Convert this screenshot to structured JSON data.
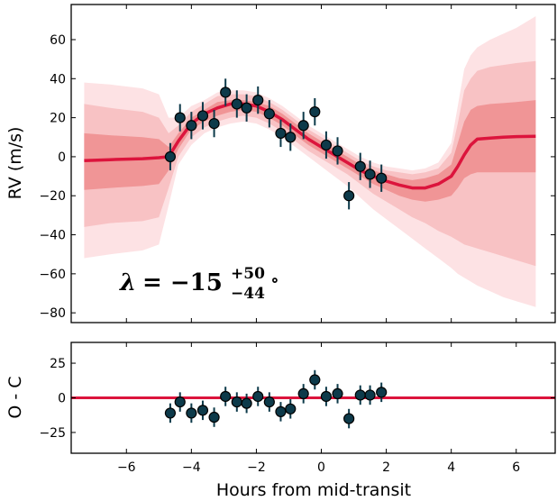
{
  "chart_data": [
    {
      "type": "scatter",
      "panel": "top",
      "xlabel": "Hours from mid-transit",
      "ylabel": "RV (m/s)",
      "xlim": [
        -7.7,
        7.2
      ],
      "ylim": [
        -85,
        78
      ],
      "xticks": [
        -6,
        -4,
        -2,
        0,
        2,
        4,
        6
      ],
      "xtick_labels": [
        "−6",
        "−4",
        "−2",
        "0",
        "2",
        "4",
        "6"
      ],
      "yticks": [
        -80,
        -60,
        -40,
        -20,
        0,
        20,
        40,
        60
      ],
      "ytick_labels": [
        "−80",
        "−60",
        "−40",
        "−20",
        "0",
        "20",
        "40",
        "60"
      ],
      "annotation": {
        "lambda_symbol": "λ",
        "value_text": "= −15",
        "sup": "+50",
        "sub": "−44",
        "degree": "∘"
      },
      "model": {
        "color": "#dc143c",
        "x": [
          -7.3,
          -6.5,
          -5.5,
          -5.0,
          -4.7,
          -4.4,
          -4.0,
          -3.6,
          -3.2,
          -2.8,
          -2.4,
          -2.0,
          -1.6,
          -1.2,
          -0.8,
          -0.4,
          0.0,
          0.4,
          0.8,
          1.2,
          1.6,
          2.0,
          2.4,
          2.8,
          3.2,
          3.6,
          4.0,
          4.2,
          4.4,
          4.6,
          4.8,
          5.2,
          5.6,
          6.0,
          6.6
        ],
        "y": [
          -2,
          -1.5,
          -1,
          -0.5,
          0,
          8,
          17,
          22,
          25,
          27,
          27,
          26,
          23,
          19,
          14,
          9,
          5,
          1,
          -3,
          -7,
          -10,
          -12.5,
          -14.5,
          -16,
          -16,
          -14,
          -10,
          -5,
          1,
          6,
          9,
          9.5,
          10,
          10.3,
          10.5
        ],
        "bands": [
          {
            "level": "3sigma",
            "color": "#fde2e4",
            "upper": [
              38,
              37,
              35,
              32,
              20,
              20,
              26,
              29,
              33,
              34,
              34,
              33,
              30,
              26,
              21,
              16,
              12,
              8,
              4,
              0,
              -3,
              -5,
              -6,
              -7,
              -6,
              -3,
              7,
              26,
              45,
              52,
              56,
              60,
              63,
              66,
              72
            ],
            "lower": [
              -52,
              -50,
              -48,
              -45,
              -25,
              -4,
              6,
              12,
              15,
              17,
              18,
              17,
              14,
              10,
              5,
              0,
              -5,
              -10,
              -15,
              -21,
              -27,
              -32,
              -37,
              -42,
              -47,
              -52,
              -57,
              -60,
              -62,
              -64,
              -66,
              -69,
              -72,
              -74,
              -77
            ]
          },
          {
            "level": "2sigma",
            "color": "#f8c2c4",
            "upper": [
              27,
              25,
              23,
              20,
              12,
              16,
              23,
              27,
              31,
              32,
              32,
              31,
              28,
              24,
              19,
              14,
              10,
              6,
              2,
              -2,
              -5,
              -7,
              -8,
              -9,
              -8,
              -6,
              2,
              17,
              34,
              40,
              44,
              46,
              47,
              48,
              49
            ],
            "lower": [
              -36,
              -34,
              -33,
              -31,
              -16,
              0,
              10,
              15,
              18,
              20,
              21,
              20,
              17,
              13,
              8,
              3,
              -1,
              -5,
              -9,
              -14,
              -19,
              -23,
              -27,
              -31,
              -34,
              -38,
              -41,
              -43,
              -45,
              -46,
              -47,
              -49,
              -51,
              -53,
              -56
            ]
          },
          {
            "level": "1sigma",
            "color": "#f09596",
            "upper": [
              12,
              11,
              10,
              9,
              5,
              12,
              20,
              24,
              28,
              29,
              29,
              28,
              26,
              22,
              17,
              12,
              8,
              4,
              0,
              -4,
              -7,
              -9,
              -11,
              -12,
              -11,
              -9,
              -4,
              7,
              18,
              24,
              26,
              27,
              27.5,
              28,
              29
            ],
            "lower": [
              -17,
              -16,
              -15,
              -14,
              -7,
              4,
              14,
              18,
              21,
              23,
              24,
              23,
              20,
              16,
              11,
              6,
              2,
              -2,
              -6,
              -10,
              -14,
              -17,
              -20,
              -22,
              -23,
              -22,
              -20,
              -16,
              -11,
              -9,
              -8,
              -8,
              -8,
              -8,
              -8
            ]
          }
        ]
      },
      "points": {
        "x": [
          -4.65,
          -4.35,
          -4.0,
          -3.65,
          -3.3,
          -2.95,
          -2.6,
          -2.3,
          -1.95,
          -1.6,
          -1.25,
          -0.95,
          -0.55,
          -0.2,
          0.15,
          0.5,
          0.85,
          1.2,
          1.5,
          1.85
        ],
        "y": [
          0,
          20,
          16,
          21,
          17,
          33,
          27,
          25,
          29,
          22,
          12,
          10,
          16,
          23,
          6,
          3,
          -20,
          -5,
          -9,
          -11
        ],
        "yerr": [
          7,
          7,
          7,
          7,
          7,
          7,
          7,
          7,
          7,
          7,
          7,
          7,
          7,
          7,
          7,
          7,
          7,
          7,
          7,
          7
        ],
        "marker_color": "#0d3a4a",
        "error_color": "#0d3a4a"
      }
    },
    {
      "type": "scatter",
      "panel": "bottom",
      "ylabel": "O - C",
      "xlim": [
        -7.7,
        7.2
      ],
      "ylim": [
        -40,
        40
      ],
      "yticks": [
        -25,
        0,
        25
      ],
      "ytick_labels": [
        "−25",
        "0",
        "25"
      ],
      "zero_line_color": "#dc143c",
      "points": {
        "x": [
          -4.65,
          -4.35,
          -4.0,
          -3.65,
          -3.3,
          -2.95,
          -2.6,
          -2.3,
          -1.95,
          -1.6,
          -1.25,
          -0.95,
          -0.55,
          -0.2,
          0.15,
          0.5,
          0.85,
          1.2,
          1.5,
          1.85
        ],
        "y": [
          -11,
          -3,
          -11,
          -9,
          -14,
          1,
          -3,
          -4,
          1,
          -3,
          -10,
          -8,
          3,
          13,
          1,
          3,
          -15,
          2,
          2,
          4
        ],
        "yerr": [
          7,
          7,
          7,
          7,
          7,
          7,
          7,
          7,
          7,
          7,
          7,
          7,
          7,
          7,
          7,
          7,
          7,
          7,
          7,
          7
        ]
      }
    }
  ]
}
